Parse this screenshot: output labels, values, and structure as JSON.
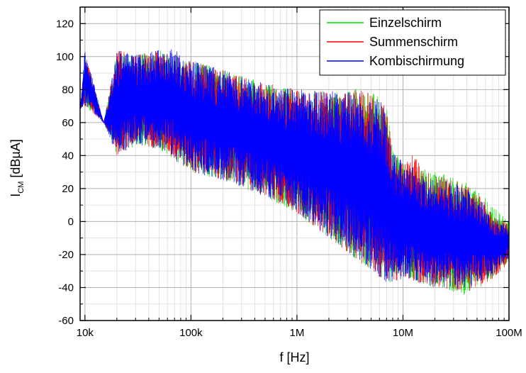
{
  "chart_data": {
    "type": "line",
    "xlabel": "f [Hz]",
    "ylabel": {
      "main": "I",
      "sub": "CM",
      "unit": " [dBµA]"
    },
    "x_scale": "log",
    "xlim": [
      9000,
      100000000
    ],
    "ylim": [
      -60,
      130
    ],
    "x_ticks": [
      {
        "value": 10000,
        "label": "10k"
      },
      {
        "value": 100000,
        "label": "100k"
      },
      {
        "value": 1000000,
        "label": "1M"
      },
      {
        "value": 10000000,
        "label": "10M"
      },
      {
        "value": 100000000,
        "label": "100M"
      }
    ],
    "y_ticks": [
      -60,
      -40,
      -20,
      0,
      20,
      40,
      60,
      80,
      100,
      120
    ],
    "grid": true,
    "legend_position": "top-right",
    "series": [
      {
        "name": "Einzelschirm",
        "color": "#00dd00",
        "upper": [
          [
            9000,
            68
          ],
          [
            10000,
            103
          ],
          [
            15000,
            60
          ],
          [
            20000,
            104
          ],
          [
            30000,
            101
          ],
          [
            50000,
            104
          ],
          [
            100000,
            98
          ],
          [
            200000,
            92
          ],
          [
            500000,
            84
          ],
          [
            1000000,
            80
          ],
          [
            2000000,
            79
          ],
          [
            4000000,
            82
          ],
          [
            6000000,
            76
          ],
          [
            7000000,
            70
          ],
          [
            8000000,
            45
          ],
          [
            10000000,
            35
          ],
          [
            15000,
            60
          ],
          [
            20000000,
            30
          ],
          [
            30000000,
            28
          ],
          [
            50000000,
            20
          ],
          [
            70000000,
            10
          ],
          [
            100000000,
            0
          ]
        ],
        "lower": [
          [
            9000,
            68
          ],
          [
            10000,
            70
          ],
          [
            15000,
            60
          ],
          [
            20000,
            40
          ],
          [
            30000,
            46
          ],
          [
            50000,
            44
          ],
          [
            100000,
            30
          ],
          [
            200000,
            25
          ],
          [
            500000,
            15
          ],
          [
            1000000,
            5
          ],
          [
            2000000,
            -10
          ],
          [
            4000000,
            -25
          ],
          [
            7000000,
            -38
          ],
          [
            10000000,
            -35
          ],
          [
            20000000,
            -40
          ],
          [
            40000000,
            -45
          ],
          [
            70000000,
            -35
          ],
          [
            100000000,
            -25
          ]
        ]
      },
      {
        "name": "Summenschirm",
        "color": "#ff0000",
        "upper": [
          [
            9000,
            68
          ],
          [
            10000,
            103
          ],
          [
            15000,
            60
          ],
          [
            20000,
            104
          ],
          [
            30000,
            101
          ],
          [
            50000,
            104
          ],
          [
            100000,
            98
          ],
          [
            200000,
            92
          ],
          [
            500000,
            84
          ],
          [
            1000000,
            80
          ],
          [
            2000000,
            79
          ],
          [
            4000000,
            80
          ],
          [
            6000000,
            75
          ],
          [
            7000000,
            70
          ],
          [
            8000000,
            44
          ],
          [
            10000000,
            35
          ],
          [
            12500000,
            42
          ],
          [
            15000000,
            32
          ],
          [
            20000000,
            28
          ],
          [
            30000000,
            26
          ],
          [
            50000000,
            18
          ],
          [
            70000000,
            5
          ],
          [
            100000000,
            -2
          ]
        ],
        "lower": [
          [
            9000,
            68
          ],
          [
            10000,
            70
          ],
          [
            15000,
            60
          ],
          [
            20000,
            40
          ],
          [
            30000,
            46
          ],
          [
            50000,
            44
          ],
          [
            100000,
            30
          ],
          [
            200000,
            25
          ],
          [
            500000,
            15
          ],
          [
            1000000,
            5
          ],
          [
            2000000,
            -10
          ],
          [
            4000000,
            -25
          ],
          [
            7000000,
            -38
          ],
          [
            10000000,
            -35
          ],
          [
            20000000,
            -40
          ],
          [
            40000000,
            -43
          ],
          [
            70000000,
            -35
          ],
          [
            100000000,
            -25
          ]
        ]
      },
      {
        "name": "Kombischirmung",
        "color": "#0000ff",
        "upper": [
          [
            9000,
            68
          ],
          [
            10000,
            105
          ],
          [
            15000,
            60
          ],
          [
            20000,
            104
          ],
          [
            30000,
            101
          ],
          [
            50000,
            104
          ],
          [
            70000,
            107
          ],
          [
            100000,
            98
          ],
          [
            200000,
            92
          ],
          [
            500000,
            84
          ],
          [
            1000000,
            80
          ],
          [
            2000000,
            79
          ],
          [
            4000000,
            79
          ],
          [
            6000000,
            74
          ],
          [
            7000000,
            70
          ],
          [
            8000000,
            44
          ],
          [
            10000000,
            36
          ],
          [
            15000000,
            30
          ],
          [
            20000000,
            26
          ],
          [
            30000000,
            24
          ],
          [
            50000000,
            16
          ],
          [
            70000000,
            4
          ],
          [
            100000000,
            -3
          ]
        ],
        "lower": [
          [
            9000,
            68
          ],
          [
            10000,
            70
          ],
          [
            15000,
            60
          ],
          [
            20000,
            40
          ],
          [
            30000,
            46
          ],
          [
            50000,
            44
          ],
          [
            100000,
            30
          ],
          [
            200000,
            25
          ],
          [
            500000,
            15
          ],
          [
            1000000,
            5
          ],
          [
            2000000,
            -10
          ],
          [
            4000000,
            -25
          ],
          [
            7000000,
            -38
          ],
          [
            10000000,
            -35
          ],
          [
            20000000,
            -40
          ],
          [
            40000000,
            -42
          ],
          [
            70000000,
            -33
          ],
          [
            100000000,
            -22
          ]
        ]
      }
    ]
  }
}
